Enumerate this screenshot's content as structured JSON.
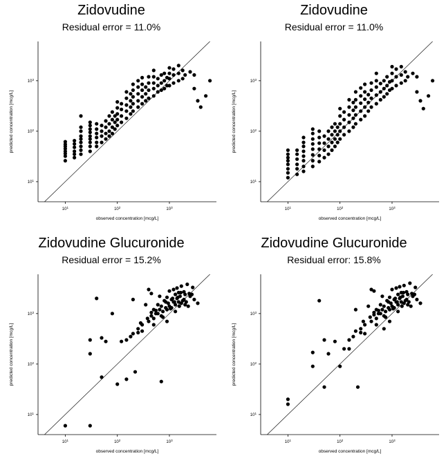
{
  "chart_data": [
    {
      "type": "scatter",
      "title": "Zidovudine",
      "subtitle": "Residual error = 11.0%",
      "xlabel": "observed concentration [mcg/L]",
      "ylabel": "predicted concentration [mcg/L]",
      "x_scale": "log",
      "y_scale": "log",
      "x_ticks": [
        10,
        100,
        1000
      ],
      "y_ticks": [
        10,
        100,
        1000
      ],
      "x_tick_labels": [
        "10^1",
        "10^2",
        "10^3"
      ],
      "y_tick_labels": [
        "10^1",
        "10^2",
        "10^3"
      ],
      "xlim": [
        3,
        8000
      ],
      "ylim": [
        4,
        6000
      ],
      "identity_line": true,
      "grid": false,
      "series": [
        {
          "x": [
            10,
            10,
            10,
            10,
            10,
            10,
            10,
            10,
            15,
            15,
            15,
            15,
            15,
            15,
            20,
            20,
            20,
            20,
            20,
            20,
            20,
            20,
            20,
            30,
            30,
            30,
            30,
            30,
            30,
            30,
            30,
            30,
            40,
            40,
            40,
            40,
            40,
            40,
            50,
            50,
            50,
            50,
            60,
            60,
            60,
            60,
            70,
            70,
            70,
            70,
            80,
            80,
            80,
            80,
            90,
            90,
            90,
            100,
            100,
            100,
            100,
            100,
            120,
            120,
            120,
            120,
            150,
            150,
            150,
            150,
            150,
            180,
            180,
            180,
            180,
            200,
            200,
            200,
            200,
            200,
            250,
            250,
            250,
            250,
            250,
            300,
            300,
            300,
            300,
            300,
            350,
            350,
            350,
            400,
            400,
            400,
            400,
            500,
            500,
            500,
            500,
            500,
            600,
            600,
            600,
            700,
            700,
            700,
            800,
            800,
            800,
            900,
            900,
            1000,
            1000,
            1000,
            1000,
            1200,
            1200,
            1200,
            1500,
            1500,
            1500,
            1800,
            1800,
            2000,
            2500,
            3000,
            3000,
            3500,
            4000,
            5000,
            6000
          ],
          "y": [
            26,
            32,
            36,
            40,
            45,
            50,
            55,
            62,
            30,
            35,
            40,
            48,
            56,
            65,
            35,
            42,
            50,
            60,
            70,
            80,
            100,
            120,
            200,
            40,
            50,
            60,
            70,
            80,
            95,
            110,
            130,
            150,
            50,
            60,
            75,
            90,
            110,
            140,
            60,
            80,
            100,
            130,
            70,
            90,
            120,
            160,
            80,
            100,
            140,
            200,
            90,
            120,
            170,
            240,
            110,
            150,
            200,
            130,
            170,
            220,
            290,
            380,
            150,
            200,
            270,
            350,
            180,
            250,
            330,
            450,
            600,
            220,
            300,
            400,
            550,
            250,
            350,
            480,
            650,
            850,
            300,
            400,
            550,
            750,
            1000,
            350,
            480,
            650,
            850,
            1150,
            400,
            550,
            750,
            450,
            650,
            900,
            1200,
            500,
            700,
            900,
            1200,
            1600,
            600,
            800,
            1100,
            650,
            900,
            1300,
            700,
            1000,
            1400,
            800,
            1150,
            800,
            1100,
            1400,
            1800,
            900,
            1300,
            1700,
            1000,
            1400,
            2000,
            1100,
            1600,
            1300,
            1500,
            700,
            1300,
            400,
            300,
            500,
            1000
          ]
        }
      ]
    },
    {
      "type": "scatter",
      "title": "Zidovudine",
      "subtitle": "Residual error = 11.0%",
      "xlabel": "observed concentration [mcg/L]",
      "ylabel": "predicted concentration [mcg/L]",
      "x_scale": "log",
      "y_scale": "log",
      "x_ticks": [
        10,
        100,
        1000
      ],
      "y_ticks": [
        10,
        100,
        1000
      ],
      "x_tick_labels": [
        "10^1",
        "10^2",
        "10^3"
      ],
      "y_tick_labels": [
        "10^1",
        "10^2",
        "10^3"
      ],
      "xlim": [
        3,
        8000
      ],
      "ylim": [
        4,
        6000
      ],
      "identity_line": true,
      "grid": false,
      "series": [
        {
          "x": [
            10,
            10,
            10,
            10,
            10,
            10,
            10,
            10,
            15,
            15,
            15,
            15,
            15,
            15,
            20,
            20,
            20,
            20,
            20,
            20,
            20,
            20,
            30,
            30,
            30,
            30,
            30,
            30,
            30,
            30,
            40,
            40,
            40,
            40,
            40,
            40,
            50,
            50,
            50,
            50,
            60,
            60,
            60,
            60,
            70,
            70,
            70,
            70,
            80,
            80,
            80,
            80,
            90,
            90,
            90,
            100,
            100,
            100,
            100,
            100,
            120,
            120,
            120,
            120,
            150,
            150,
            150,
            150,
            150,
            180,
            180,
            180,
            180,
            200,
            200,
            200,
            200,
            200,
            250,
            250,
            250,
            250,
            250,
            300,
            300,
            300,
            300,
            300,
            350,
            350,
            350,
            400,
            400,
            400,
            400,
            500,
            500,
            500,
            500,
            500,
            600,
            600,
            600,
            700,
            700,
            700,
            800,
            800,
            800,
            900,
            900,
            1000,
            1000,
            1000,
            1000,
            1200,
            1200,
            1200,
            1500,
            1500,
            1500,
            1800,
            1800,
            2000,
            2500,
            3000,
            3000,
            3500,
            4000,
            5000,
            6000
          ],
          "y": [
            12,
            15,
            18,
            22,
            26,
            30,
            35,
            42,
            14,
            18,
            22,
            28,
            35,
            42,
            16,
            20,
            26,
            32,
            40,
            50,
            60,
            75,
            20,
            26,
            34,
            44,
            56,
            70,
            90,
            110,
            25,
            33,
            44,
            58,
            75,
            100,
            30,
            42,
            58,
            80,
            35,
            50,
            70,
            100,
            42,
            60,
            85,
            120,
            50,
            70,
            100,
            140,
            60,
            85,
            120,
            70,
            100,
            140,
            200,
            280,
            85,
            120,
            170,
            240,
            100,
            150,
            210,
            300,
            420,
            120,
            180,
            260,
            370,
            140,
            210,
            300,
            420,
            600,
            170,
            250,
            360,
            500,
            720,
            200,
            300,
            430,
            600,
            850,
            250,
            370,
            530,
            300,
            450,
            650,
            900,
            350,
            520,
            750,
            1000,
            1400,
            420,
            600,
            880,
            480,
            700,
            1000,
            550,
            800,
            1200,
            650,
            950,
            700,
            1000,
            1400,
            1900,
            800,
            1200,
            1700,
            900,
            1300,
            1900,
            1000,
            1500,
            1200,
            1400,
            600,
            1200,
            400,
            280,
            500,
            1000
          ]
        }
      ]
    },
    {
      "type": "scatter",
      "title": "Zidovudine Glucuronide",
      "subtitle": "Residual error = 15.2%",
      "xlabel": "observed concentration [mcg/L]",
      "ylabel": "predicted concentration [mcg/L]",
      "x_scale": "log",
      "y_scale": "log",
      "x_ticks": [
        10,
        100,
        1000
      ],
      "y_ticks": [
        10,
        100,
        1000
      ],
      "x_tick_labels": [
        "10^1",
        "10^2",
        "10^3"
      ],
      "y_tick_labels": [
        "10^1",
        "10^2",
        "10^3"
      ],
      "xlim": [
        3,
        8000
      ],
      "ylim": [
        4,
        6000
      ],
      "identity_line": true,
      "grid": false,
      "series": [
        {
          "x": [
            10,
            30,
            30,
            30,
            40,
            50,
            50,
            60,
            80,
            100,
            120,
            150,
            150,
            180,
            200,
            200,
            220,
            250,
            250,
            280,
            300,
            300,
            350,
            380,
            400,
            450,
            450,
            500,
            500,
            550,
            600,
            650,
            700,
            700,
            750,
            800,
            850,
            900,
            900,
            950,
            1000,
            1000,
            1100,
            1100,
            1200,
            1200,
            1300,
            1300,
            1400,
            1400,
            1500,
            1500,
            1600,
            1700,
            1800,
            1900,
            2000,
            2000,
            2200,
            2500,
            2800,
            3000,
            3500,
            700,
            500,
            600,
            900,
            1300,
            1700,
            2300,
            650,
            750,
            1050,
            1250,
            1450,
            1650,
            1900,
            400,
            450,
            550,
            850,
            1150,
            1550,
            2100,
            2400,
            2700
          ],
          "y": [
            6,
            6,
            160,
            300,
            2000,
            55,
            330,
            280,
            1000,
            40,
            280,
            50,
            300,
            350,
            1900,
            400,
            70,
            500,
            420,
            650,
            600,
            450,
            1500,
            800,
            700,
            900,
            2500,
            1200,
            800,
            1000,
            1500,
            2200,
            900,
            1400,
            1100,
            1800,
            1300,
            2100,
            1200,
            1600,
            2800,
            1400,
            1900,
            1300,
            3000,
            1700,
            2400,
            1500,
            3200,
            2000,
            2600,
            1700,
            2200,
            3500,
            1800,
            2700,
            2400,
            1500,
            3800,
            2200,
            3300,
            1900,
            1600,
            45,
            600,
            1000,
            700,
            1100,
            1600,
            1400,
            1200,
            850,
            1250,
            1700,
            2100,
            2600,
            1900,
            3000,
            1050,
            1150,
            1700,
            2000,
            1400,
            1700,
            2500,
            2400
          ]
        }
      ]
    },
    {
      "type": "scatter",
      "title": "Zidovudine Glucuronide",
      "subtitle": "Residual error: 15.8%",
      "xlabel": "observed concentration [mcg/L]",
      "ylabel": "predicted concentration [mcg/L]",
      "x_scale": "log",
      "y_scale": "log",
      "x_ticks": [
        10,
        100,
        1000
      ],
      "y_ticks": [
        10,
        100,
        1000
      ],
      "x_tick_labels": [
        "10^1",
        "10^2",
        "10^3"
      ],
      "y_tick_labels": [
        "10^1",
        "10^2",
        "10^3"
      ],
      "xlim": [
        3,
        8000
      ],
      "ylim": [
        4,
        6000
      ],
      "identity_line": true,
      "grid": false,
      "series": [
        {
          "x": [
            10,
            10,
            30,
            30,
            40,
            50,
            50,
            60,
            80,
            100,
            120,
            150,
            150,
            180,
            200,
            200,
            220,
            250,
            250,
            280,
            300,
            300,
            350,
            380,
            400,
            450,
            450,
            500,
            500,
            550,
            600,
            650,
            700,
            700,
            750,
            800,
            850,
            900,
            900,
            950,
            1000,
            1000,
            1100,
            1100,
            1200,
            1200,
            1300,
            1300,
            1400,
            1400,
            1500,
            1500,
            1600,
            1700,
            1800,
            1900,
            2000,
            2000,
            2200,
            2500,
            2800,
            3000,
            3500,
            700,
            500,
            600,
            900,
            1300,
            1700,
            2300,
            650,
            750,
            1050,
            1250,
            1450,
            1650,
            1900,
            400,
            450,
            550,
            850,
            1150,
            1550,
            2100,
            2400,
            2700
          ],
          "y": [
            16,
            20,
            90,
            170,
            1800,
            35,
            300,
            160,
            280,
            90,
            200,
            200,
            300,
            350,
            1200,
            450,
            35,
            500,
            420,
            700,
            600,
            400,
            1400,
            850,
            700,
            950,
            2800,
            1200,
            800,
            1000,
            1500,
            2200,
            900,
            1400,
            1100,
            1800,
            1300,
            2100,
            1200,
            1600,
            3000,
            1400,
            1900,
            1300,
            3200,
            1700,
            2400,
            1500,
            3400,
            2000,
            2600,
            1700,
            2200,
            3600,
            1800,
            2700,
            2400,
            1500,
            4000,
            2200,
            3300,
            1900,
            1600,
            500,
            600,
            1000,
            700,
            1100,
            1600,
            1400,
            1200,
            850,
            1250,
            1700,
            2100,
            2600,
            1900,
            3000,
            1050,
            1150,
            1700,
            2000,
            1400,
            1700,
            2500,
            2400
          ]
        }
      ]
    }
  ]
}
